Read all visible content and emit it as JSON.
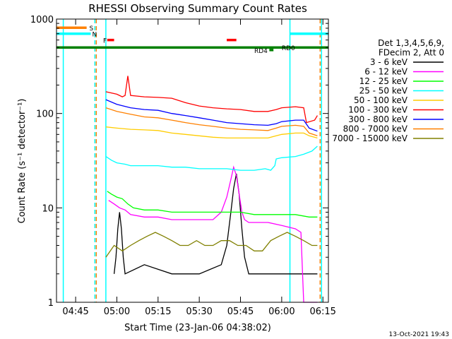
{
  "chart_data": {
    "type": "line",
    "title": "RHESSI Observing Summary Count Rates",
    "xlabel": "Start Time (23-Jan-06 04:38:02)",
    "ylabel": "Count Rate (s⁻¹ detector⁻¹)",
    "y_scale": "log",
    "ylim": [
      1,
      1000
    ],
    "y_ticks": [
      {
        "value": 1,
        "label": "1"
      },
      {
        "value": 10,
        "label": "10"
      },
      {
        "value": 100,
        "label": "100"
      },
      {
        "value": 1000,
        "label": "1000"
      }
    ],
    "xlim": [
      "04:38:02",
      "06:17:00"
    ],
    "x_ticks": [
      {
        "value": "04:45",
        "label": "04:45"
      },
      {
        "value": "05:00",
        "label": "05:00"
      },
      {
        "value": "05:15",
        "label": "05:15"
      },
      {
        "value": "05:30",
        "label": "05:30"
      },
      {
        "value": "05:45",
        "label": "05:45"
      },
      {
        "value": "06:00",
        "label": "06:00"
      },
      {
        "value": "06:15",
        "label": "06:15"
      }
    ],
    "legend_position": "right",
    "legend_header": [
      "Det 1,3,4,5,6,9,",
      "FDecim 2, Att 0"
    ],
    "series": [
      {
        "name": "3 - 6 keV",
        "color": "#000000",
        "x": [
          "04:59:00",
          "04:59:40",
          "05:00:20",
          "05:01:00",
          "05:01:40",
          "05:02:20",
          "05:03:00",
          "05:10:00",
          "05:20:00",
          "05:30:00",
          "05:38:00",
          "05:40:00",
          "05:41:30",
          "05:42:30",
          "05:43:30",
          "05:44:30",
          "05:45:30",
          "05:46:30",
          "05:48:00",
          "05:55:00",
          "06:00:00",
          "06:05:00",
          "06:10:00",
          "06:13:00"
        ],
        "y": [
          2,
          3,
          6,
          9,
          6,
          3,
          2,
          2.5,
          2,
          2,
          2.5,
          4,
          9,
          16,
          23,
          14,
          6,
          3,
          2,
          2,
          2,
          2,
          2,
          2
        ]
      },
      {
        "name": "6 - 12 keV",
        "color": "#ff00ff",
        "x": [
          "04:57:00",
          "04:59:00",
          "05:01:00",
          "05:03:00",
          "05:05:00",
          "05:10:00",
          "05:15:00",
          "05:20:00",
          "05:25:00",
          "05:30:00",
          "05:35:00",
          "05:38:00",
          "05:40:00",
          "05:41:30",
          "05:42:30",
          "05:43:30",
          "05:44:30",
          "05:45:30",
          "05:46:30",
          "05:48:00",
          "05:55:00",
          "06:00:00",
          "06:05:00",
          "06:07:00",
          "06:08:00",
          "06:13:00"
        ],
        "y": [
          12,
          11,
          10,
          9.5,
          8.5,
          8,
          8,
          7.5,
          7.5,
          7.5,
          7.5,
          9,
          13,
          20,
          27,
          22,
          14,
          9,
          7.5,
          7,
          7,
          6.5,
          6,
          5.5,
          1,
          1
        ]
      },
      {
        "name": "12 - 25 keV",
        "color": "#00ff00",
        "x": [
          "04:56:30",
          "04:58:00",
          "05:00:00",
          "05:02:00",
          "05:04:00",
          "05:06:00",
          "05:10:00",
          "05:15:00",
          "05:20:00",
          "05:25:00",
          "05:30:00",
          "05:35:00",
          "05:40:00",
          "05:45:00",
          "05:50:00",
          "05:55:00",
          "06:00:00",
          "06:05:00",
          "06:10:00",
          "06:13:00"
        ],
        "y": [
          15,
          14,
          13,
          12.5,
          11,
          10,
          9.5,
          9.5,
          9,
          9,
          9,
          9,
          9,
          9,
          8.5,
          8.5,
          8.5,
          8.5,
          8,
          8
        ]
      },
      {
        "name": "25 - 50 keV",
        "color": "#00ffff",
        "x": [
          "04:56:00",
          "04:58:00",
          "05:00:00",
          "05:03:00",
          "05:05:00",
          "05:10:00",
          "05:15:00",
          "05:20:00",
          "05:25:00",
          "05:30:00",
          "05:35:00",
          "05:40:00",
          "05:45:00",
          "05:50:00",
          "05:54:00",
          "05:56:00",
          "05:57:30",
          "05:58:00",
          "06:00:00",
          "06:05:00",
          "06:08:00",
          "06:11:00",
          "06:13:00"
        ],
        "y": [
          35,
          32,
          30,
          29,
          28,
          28,
          28,
          27,
          27,
          26,
          26,
          26,
          25,
          25,
          26,
          25,
          28,
          33,
          34,
          35,
          37,
          40,
          45
        ]
      },
      {
        "name": "50 - 100 keV",
        "color": "#ffcc00",
        "x": [
          "04:56:00",
          "05:00:00",
          "05:05:00",
          "05:10:00",
          "05:15:00",
          "05:20:00",
          "05:25:00",
          "05:30:00",
          "05:35:00",
          "05:40:00",
          "05:45:00",
          "05:50:00",
          "05:55:00",
          "05:58:00",
          "06:00:00",
          "06:05:00",
          "06:08:00",
          "06:10:00",
          "06:13:00"
        ],
        "y": [
          72,
          70,
          68,
          67,
          66,
          62,
          60,
          58,
          56,
          55,
          55,
          55,
          55,
          58,
          60,
          62,
          62,
          58,
          55
        ]
      },
      {
        "name": "100 - 300 keV",
        "color": "#ff0000",
        "x": [
          "04:56:00",
          "05:00:00",
          "05:02:00",
          "05:03:00",
          "05:04:00",
          "05:05:00",
          "05:10:00",
          "05:15:00",
          "05:20:00",
          "05:25:00",
          "05:30:00",
          "05:35:00",
          "05:40:00",
          "05:45:00",
          "05:50:00",
          "05:55:00",
          "05:58:00",
          "06:00:00",
          "06:05:00",
          "06:08:00",
          "06:09:00",
          "06:12:00",
          "06:13:00"
        ],
        "y": [
          170,
          160,
          150,
          155,
          250,
          155,
          150,
          148,
          145,
          130,
          120,
          115,
          112,
          110,
          105,
          105,
          110,
          115,
          118,
          115,
          80,
          85,
          95
        ]
      },
      {
        "name": "300 - 800 keV",
        "color": "#0000ff",
        "x": [
          "04:56:00",
          "05:00:00",
          "05:05:00",
          "05:10:00",
          "05:15:00",
          "05:20:00",
          "05:25:00",
          "05:30:00",
          "05:35:00",
          "05:40:00",
          "05:45:00",
          "05:50:00",
          "05:55:00",
          "05:58:00",
          "06:00:00",
          "06:05:00",
          "06:08:00",
          "06:10:00",
          "06:13:00"
        ],
        "y": [
          140,
          125,
          115,
          110,
          108,
          100,
          95,
          90,
          85,
          80,
          78,
          76,
          75,
          78,
          82,
          85,
          85,
          70,
          65
        ]
      },
      {
        "name": "800 - 7000 keV",
        "color": "#ff8000",
        "x": [
          "04:56:00",
          "05:00:00",
          "05:05:00",
          "05:10:00",
          "05:15:00",
          "05:20:00",
          "05:25:00",
          "05:30:00",
          "05:35:00",
          "05:40:00",
          "05:45:00",
          "05:50:00",
          "05:55:00",
          "05:58:00",
          "06:00:00",
          "06:05:00",
          "06:08:00",
          "06:10:00",
          "06:13:00"
        ],
        "y": [
          115,
          105,
          98,
          92,
          90,
          85,
          80,
          76,
          73,
          70,
          68,
          67,
          66,
          70,
          73,
          75,
          73,
          62,
          58
        ]
      },
      {
        "name": "7000 - 15000 keV",
        "color": "#808000",
        "x": [
          "04:56:00",
          "04:59:00",
          "05:02:00",
          "05:05:00",
          "05:08:00",
          "05:11:00",
          "05:14:00",
          "05:17:00",
          "05:20:00",
          "05:23:00",
          "05:26:00",
          "05:29:00",
          "05:32:00",
          "05:35:00",
          "05:38:00",
          "05:41:00",
          "05:44:00",
          "05:47:00",
          "05:50:00",
          "05:53:00",
          "05:56:00",
          "05:59:00",
          "06:02:00",
          "06:05:00",
          "06:08:00",
          "06:11:00",
          "06:13:00"
        ],
        "y": [
          3,
          4,
          3.5,
          4,
          4.5,
          5,
          5.5,
          5,
          4.5,
          4,
          4,
          4.5,
          4,
          4,
          4.5,
          4.5,
          4,
          4,
          3.5,
          3.5,
          4.5,
          5,
          5.5,
          5,
          4.5,
          4,
          4
        ]
      }
    ],
    "markers": {
      "vertical_lines": [
        {
          "time": "04:40:30",
          "color": "#00ffff",
          "style": "solid"
        },
        {
          "time": "04:52:00",
          "color": "#00ffff",
          "style": "dashed"
        },
        {
          "time": "04:52:30",
          "color": "#ff8000",
          "style": "dashed"
        },
        {
          "time": "04:56:00",
          "color": "#00ffff",
          "style": "solid"
        },
        {
          "time": "06:03:00",
          "color": "#00ffff",
          "style": "solid"
        },
        {
          "time": "06:14:00",
          "color": "#ff8000",
          "style": "dashed"
        },
        {
          "time": "06:14:30",
          "color": "#00ffff",
          "style": "solid"
        }
      ],
      "bars": [
        {
          "label": "S",
          "color": "#ff8000",
          "y": 810,
          "segments": [
            [
              "04:38:02",
              "04:49:00"
            ]
          ],
          "label_time": "04:50:00"
        },
        {
          "label": "N",
          "color": "#00ffff",
          "y": 700,
          "segments": [
            [
              "04:38:02",
              "04:50:30"
            ],
            [
              "06:03:00",
              "06:17:00"
            ]
          ],
          "label_time": "04:51:00"
        },
        {
          "label": "F",
          "color": "#ff0000",
          "y": 600,
          "segments": [
            [
              "04:56:30",
              "04:59:00"
            ],
            [
              "05:40:00",
              "05:43:30"
            ]
          ],
          "label_time": "04:55:00"
        },
        {
          "label": "RD0",
          "color": "#008000",
          "y": 500,
          "segments": [
            [
              "04:38:02",
              "06:17:00"
            ]
          ],
          "label_time": "06:00:00"
        },
        {
          "label": "RD4",
          "color": "#008000",
          "y": 470,
          "segments": [
            [
              "05:55:30",
              "05:57:00"
            ]
          ],
          "label_time": "05:50:00"
        }
      ]
    }
  },
  "footer": {
    "timestamp": "13-Oct-2021 19:43"
  }
}
